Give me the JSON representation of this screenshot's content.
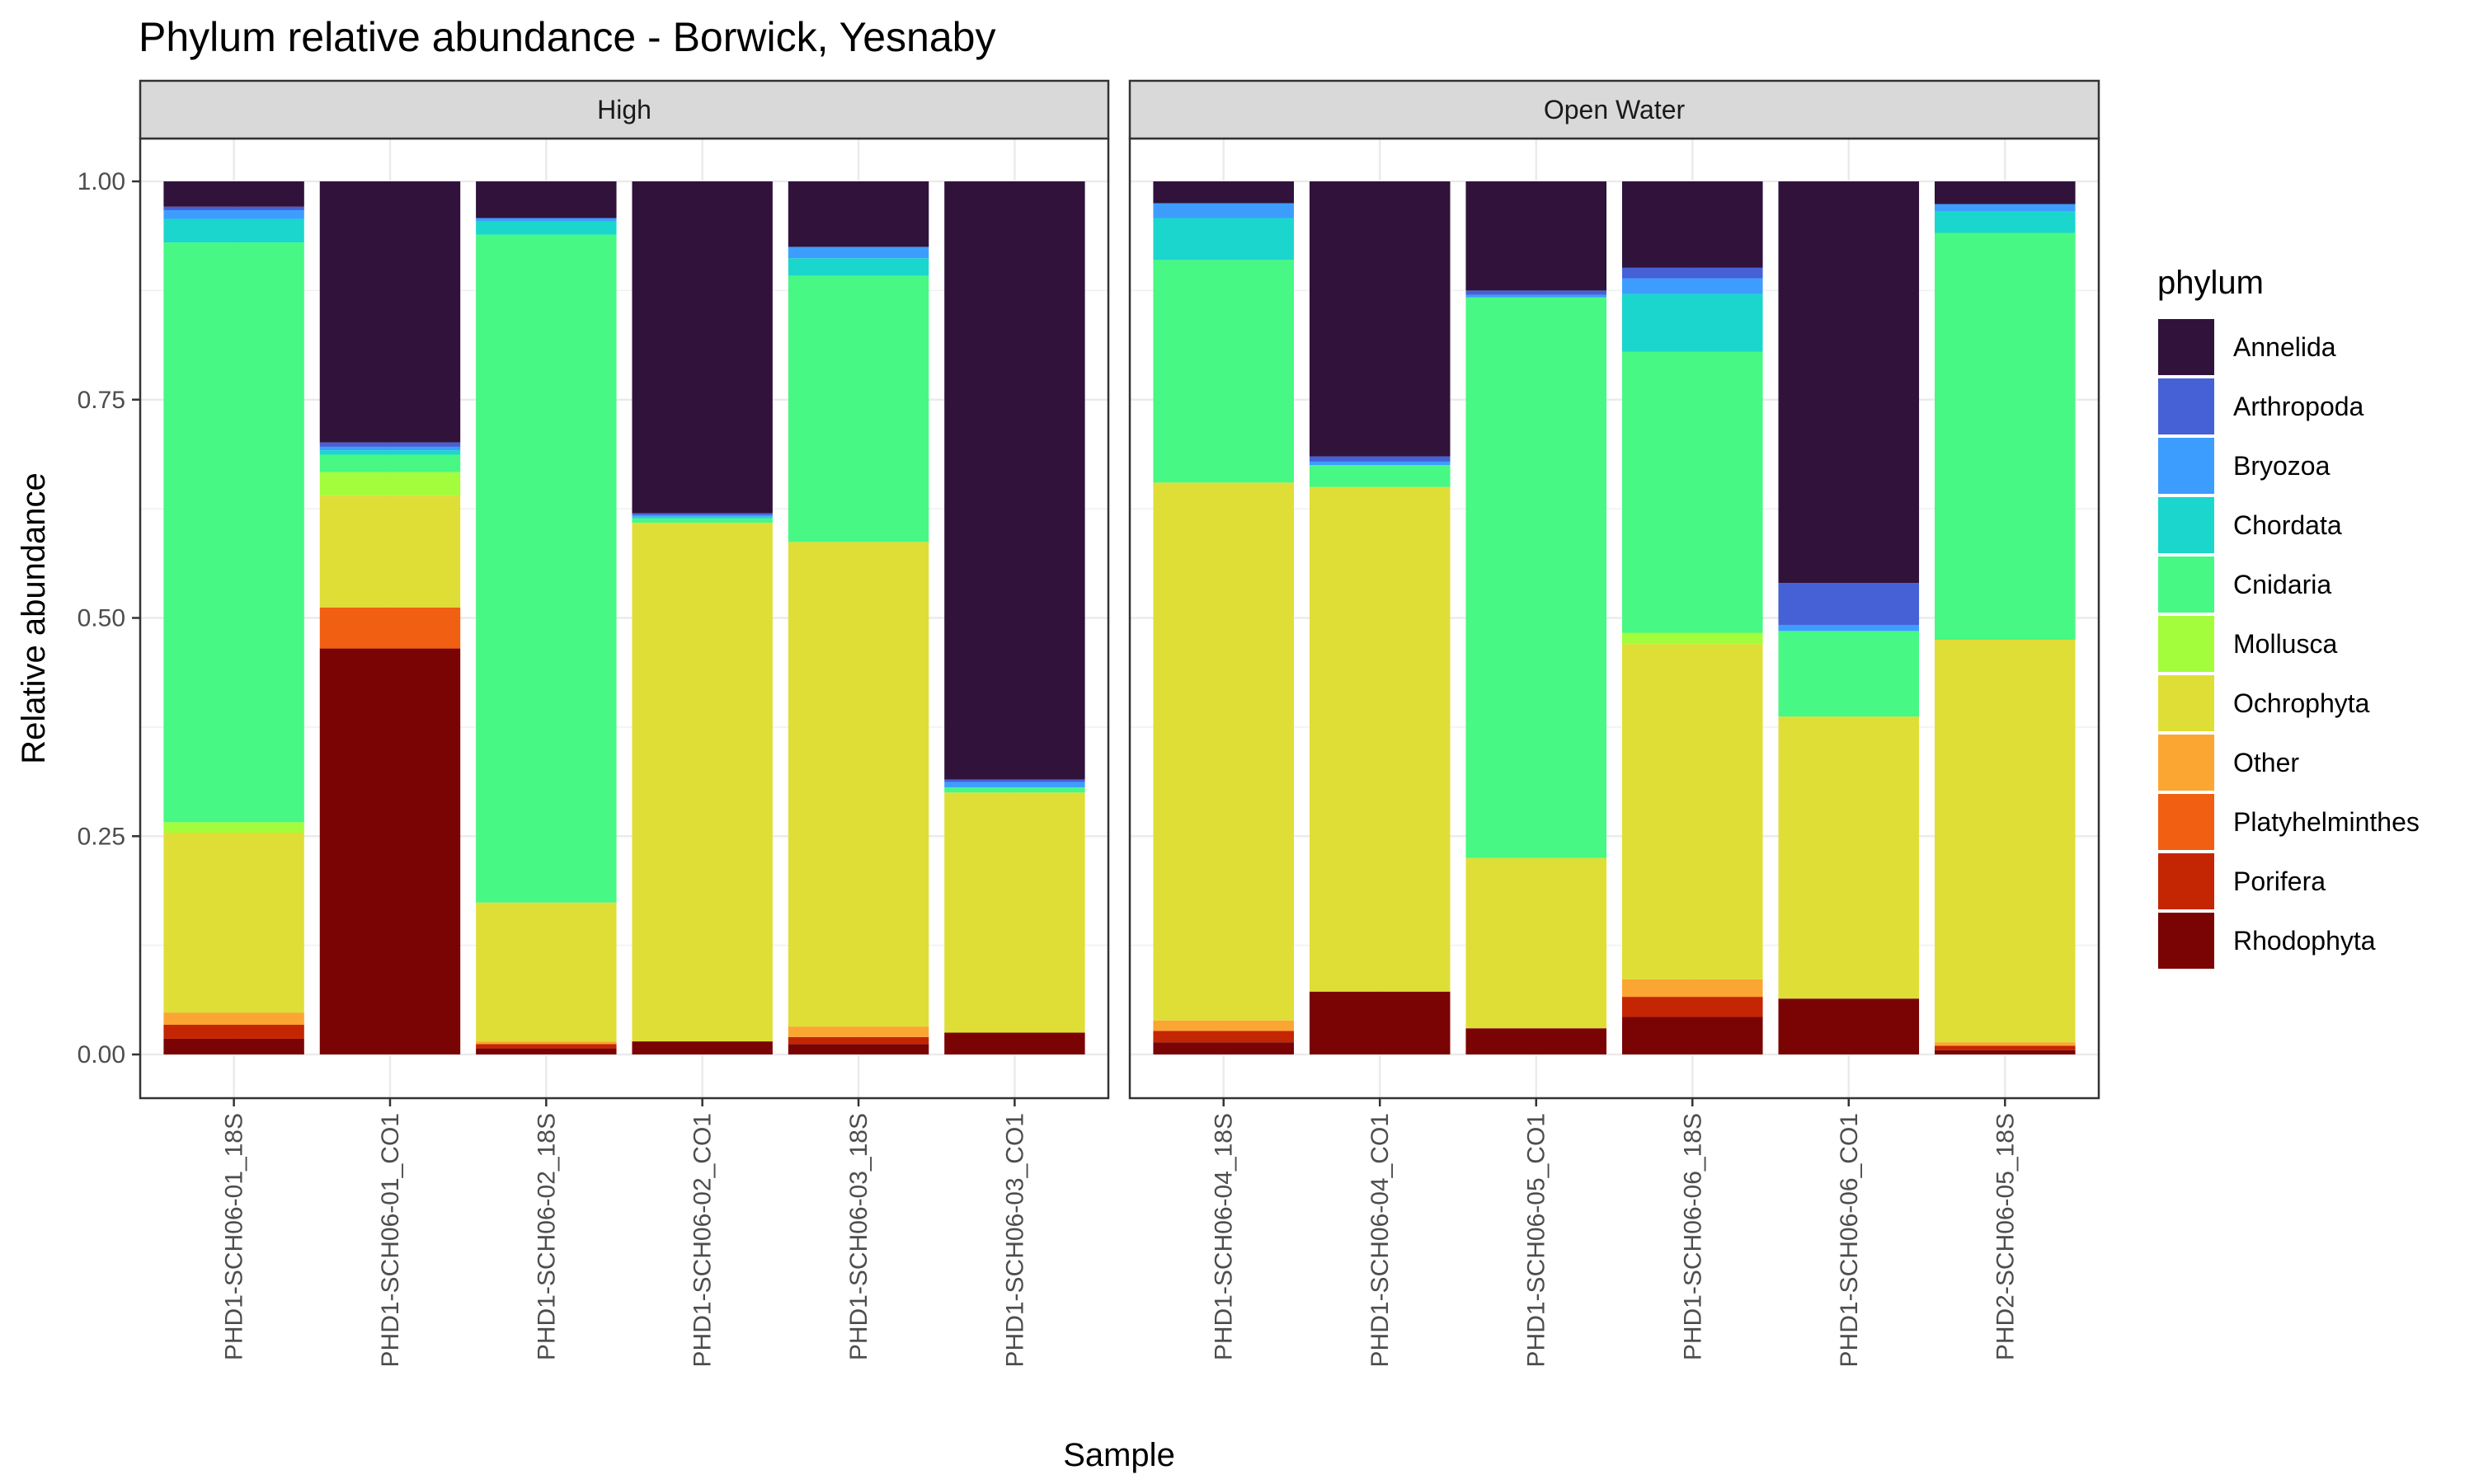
{
  "chart_data": {
    "type": "bar",
    "stacked": true,
    "title": "Phylum relative abundance - Borwick, Yesnaby",
    "xlabel": "Sample",
    "ylabel": "Relative abundance",
    "ylim": [
      0,
      1
    ],
    "yticks": [
      "0.00",
      "0.25",
      "0.50",
      "0.75",
      "1.00"
    ],
    "ytick_values": [
      0,
      0.25,
      0.5,
      0.75,
      1.0
    ],
    "grid": true,
    "legend": {
      "title": "phylum",
      "position": "right"
    },
    "phyla": [
      "Annelida",
      "Arthropoda",
      "Bryozoa",
      "Chordata",
      "Cnidaria",
      "Mollusca",
      "Ochrophyta",
      "Other",
      "Platyhelminthes",
      "Porifera",
      "Rhodophyta"
    ],
    "colors": {
      "Annelida": "#30123B",
      "Arthropoda": "#4660D6",
      "Bryozoa": "#3D9DFE",
      "Chordata": "#1BD6CC",
      "Cnidaria": "#47F884",
      "Mollusca": "#A3FD3C",
      "Ochrophyta": "#DFDE37",
      "Other": "#FBA632",
      "Platyhelminthes": "#F05F12",
      "Porifera": "#C42502",
      "Rhodophyta": "#7A0403"
    },
    "facets": [
      {
        "label": "High",
        "samples": [
          {
            "name": "PHD1-SCH06-01_18S",
            "values": {
              "Rhodophyta": 0.018,
              "Porifera": 0.016,
              "Platyhelminthes": 0.0,
              "Other": 0.014,
              "Ochrophyta": 0.206,
              "Mollusca": 0.012,
              "Cnidaria": 0.664,
              "Chordata": 0.027,
              "Bryozoa": 0.01,
              "Arthropoda": 0.004,
              "Annelida": 0.029
            }
          },
          {
            "name": "PHD1-SCH06-01_CO1",
            "values": {
              "Rhodophyta": 0.465,
              "Porifera": 0.0,
              "Platyhelminthes": 0.047,
              "Other": 0.0,
              "Ochrophyta": 0.128,
              "Mollusca": 0.027,
              "Cnidaria": 0.02,
              "Chordata": 0.005,
              "Bryozoa": 0.004,
              "Arthropoda": 0.005,
              "Annelida": 0.299
            }
          },
          {
            "name": "PHD1-SCH06-02_18S",
            "values": {
              "Rhodophyta": 0.007,
              "Porifera": 0.005,
              "Platyhelminthes": 0.0,
              "Other": 0.003,
              "Ochrophyta": 0.159,
              "Mollusca": 0.0,
              "Cnidaria": 0.765,
              "Chordata": 0.015,
              "Bryozoa": 0.004,
              "Arthropoda": 0.0,
              "Annelida": 0.042
            }
          },
          {
            "name": "PHD1-SCH06-02_CO1",
            "values": {
              "Rhodophyta": 0.015,
              "Porifera": 0.0,
              "Platyhelminthes": 0.0,
              "Other": 0.0,
              "Ochrophyta": 0.594,
              "Mollusca": 0.0,
              "Cnidaria": 0.005,
              "Chordata": 0.002,
              "Bryozoa": 0.002,
              "Arthropoda": 0.002,
              "Annelida": 0.38
            }
          },
          {
            "name": "PHD1-SCH06-03_18S",
            "values": {
              "Rhodophyta": 0.012,
              "Porifera": 0.008,
              "Platyhelminthes": 0.0,
              "Other": 0.012,
              "Ochrophyta": 0.555,
              "Mollusca": 0.0,
              "Cnidaria": 0.305,
              "Chordata": 0.02,
              "Bryozoa": 0.013,
              "Arthropoda": 0.0,
              "Annelida": 0.075
            }
          },
          {
            "name": "PHD1-SCH06-03_CO1",
            "values": {
              "Rhodophyta": 0.025,
              "Porifera": 0.0,
              "Platyhelminthes": 0.0,
              "Other": 0.0,
              "Ochrophyta": 0.275,
              "Mollusca": 0.0,
              "Cnidaria": 0.006,
              "Chordata": 0.0,
              "Bryozoa": 0.006,
              "Arthropoda": 0.003,
              "Annelida": 0.685
            }
          }
        ]
      },
      {
        "label": "Open Water",
        "samples": [
          {
            "name": "PHD1-SCH06-04_18S",
            "values": {
              "Rhodophyta": 0.014,
              "Porifera": 0.013,
              "Platyhelminthes": 0.0,
              "Other": 0.012,
              "Ochrophyta": 0.616,
              "Mollusca": 0.0,
              "Cnidaria": 0.255,
              "Chordata": 0.048,
              "Bryozoa": 0.017,
              "Arthropoda": 0.0,
              "Annelida": 0.025
            }
          },
          {
            "name": "PHD1-SCH06-04_CO1",
            "values": {
              "Rhodophyta": 0.072,
              "Porifera": 0.0,
              "Platyhelminthes": 0.0,
              "Other": 0.0,
              "Ochrophyta": 0.578,
              "Mollusca": 0.0,
              "Cnidaria": 0.025,
              "Chordata": 0.0,
              "Bryozoa": 0.004,
              "Arthropoda": 0.006,
              "Annelida": 0.315
            }
          },
          {
            "name": "PHD1-SCH06-05_CO1",
            "values": {
              "Rhodophyta": 0.03,
              "Porifera": 0.0,
              "Platyhelminthes": 0.0,
              "Other": 0.0,
              "Ochrophyta": 0.195,
              "Mollusca": 0.0,
              "Cnidaria": 0.642,
              "Chordata": 0.0,
              "Bryozoa": 0.003,
              "Arthropoda": 0.005,
              "Annelida": 0.125
            }
          },
          {
            "name": "PHD1-SCH06-06_18S",
            "values": {
              "Rhodophyta": 0.043,
              "Porifera": 0.023,
              "Platyhelminthes": 0.0,
              "Other": 0.02,
              "Ochrophyta": 0.384,
              "Mollusca": 0.013,
              "Cnidaria": 0.322,
              "Chordata": 0.066,
              "Bryozoa": 0.018,
              "Arthropoda": 0.012,
              "Annelida": 0.099
            }
          },
          {
            "name": "PHD1-SCH06-06_CO1",
            "values": {
              "Rhodophyta": 0.064,
              "Porifera": 0.0,
              "Platyhelminthes": 0.0,
              "Other": 0.0,
              "Ochrophyta": 0.323,
              "Mollusca": 0.0,
              "Cnidaria": 0.098,
              "Chordata": 0.0,
              "Bryozoa": 0.007,
              "Arthropoda": 0.048,
              "Annelida": 0.46
            }
          },
          {
            "name": "PHD2-SCH06-05_18S",
            "values": {
              "Rhodophyta": 0.005,
              "Porifera": 0.005,
              "Platyhelminthes": 0.0,
              "Other": 0.004,
              "Ochrophyta": 0.461,
              "Mollusca": 0.0,
              "Cnidaria": 0.466,
              "Chordata": 0.025,
              "Bryozoa": 0.008,
              "Arthropoda": 0.0,
              "Annelida": 0.026
            }
          }
        ]
      }
    ]
  }
}
